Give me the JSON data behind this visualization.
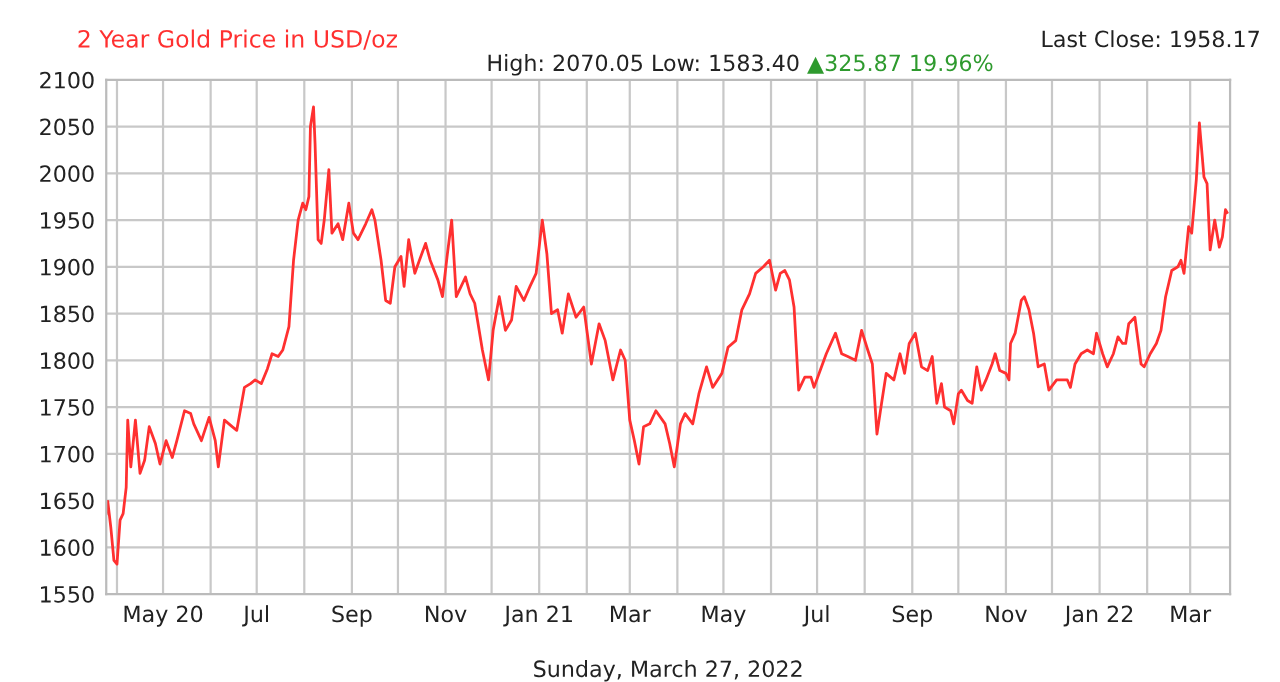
{
  "chart_data": {
    "type": "line",
    "title": "2 Year Gold Price in USD/oz",
    "subtitle": "High: 2070.05 Low: 1583.40",
    "xlabel": "Sunday, March 27, 2022",
    "annotations": [
      "▲325.87 19.96%",
      "Last Close: 1958.17"
    ],
    "xlim": [
      "2020-03-25",
      "2022-03-27"
    ],
    "ylim": [
      1550,
      2100
    ],
    "yticks": [
      1550,
      1600,
      1650,
      1700,
      1750,
      1800,
      1850,
      1900,
      1950,
      2000,
      2050,
      2100
    ],
    "xticks": [
      {
        "value": "2020-04-01",
        "label": null
      },
      {
        "value": "2020-05-01",
        "label": "May 20"
      },
      {
        "value": "2020-06-01",
        "label": null
      },
      {
        "value": "2020-07-01",
        "label": "Jul"
      },
      {
        "value": "2020-08-01",
        "label": null
      },
      {
        "value": "2020-09-01",
        "label": "Sep"
      },
      {
        "value": "2020-10-01",
        "label": null
      },
      {
        "value": "2020-11-01",
        "label": "Nov"
      },
      {
        "value": "2020-12-01",
        "label": null
      },
      {
        "value": "2021-01-01",
        "label": "Jan 21"
      },
      {
        "value": "2021-02-01",
        "label": null
      },
      {
        "value": "2021-03-01",
        "label": "Mar"
      },
      {
        "value": "2021-04-01",
        "label": null
      },
      {
        "value": "2021-05-01",
        "label": "May"
      },
      {
        "value": "2021-06-01",
        "label": null
      },
      {
        "value": "2021-07-01",
        "label": "Jul"
      },
      {
        "value": "2021-08-01",
        "label": null
      },
      {
        "value": "2021-09-01",
        "label": "Sep"
      },
      {
        "value": "2021-10-01",
        "label": null
      },
      {
        "value": "2021-11-01",
        "label": "Nov"
      },
      {
        "value": "2021-12-01",
        "label": null
      },
      {
        "value": "2022-01-01",
        "label": "Jan 22"
      },
      {
        "value": "2022-02-01",
        "label": null
      },
      {
        "value": "2022-03-01",
        "label": "Mar"
      }
    ],
    "grid": true,
    "legend": false,
    "series": [
      {
        "color": "#ff3030",
        "x": [
          "2020-03-25",
          "2020-03-26",
          "2020-03-28",
          "2020-03-30",
          "2020-04-01",
          "2020-04-03",
          "2020-04-05",
          "2020-04-07",
          "2020-04-08",
          "2020-04-10",
          "2020-04-13",
          "2020-04-16",
          "2020-04-19",
          "2020-04-22",
          "2020-04-26",
          "2020-04-29",
          "2020-05-03",
          "2020-05-07",
          "2020-05-10",
          "2020-05-15",
          "2020-05-19",
          "2020-05-21",
          "2020-05-26",
          "2020-05-31",
          "2020-06-04",
          "2020-06-06",
          "2020-06-10",
          "2020-06-15",
          "2020-06-18",
          "2020-06-23",
          "2020-06-27",
          "2020-06-30",
          "2020-07-04",
          "2020-07-08",
          "2020-07-11",
          "2020-07-15",
          "2020-07-18",
          "2020-07-22",
          "2020-07-25",
          "2020-07-28",
          "2020-07-31",
          "2020-08-02",
          "2020-08-04",
          "2020-08-05",
          "2020-08-07",
          "2020-08-08",
          "2020-08-10",
          "2020-08-12",
          "2020-08-14",
          "2020-08-17",
          "2020-08-19",
          "2020-08-23",
          "2020-08-26",
          "2020-08-30",
          "2020-09-02",
          "2020-09-05",
          "2020-09-10",
          "2020-09-14",
          "2020-09-16",
          "2020-09-20",
          "2020-09-23",
          "2020-09-26",
          "2020-09-29",
          "2020-10-03",
          "2020-10-05",
          "2020-10-08",
          "2020-10-12",
          "2020-10-15",
          "2020-10-19",
          "2020-10-22",
          "2020-10-27",
          "2020-10-30",
          "2020-11-02",
          "2020-11-05",
          "2020-11-08",
          "2020-11-10",
          "2020-11-14",
          "2020-11-17",
          "2020-11-20",
          "2020-11-25",
          "2020-11-29",
          "2020-12-02",
          "2020-12-06",
          "2020-12-10",
          "2020-12-14",
          "2020-12-17",
          "2020-12-22",
          "2020-12-26",
          "2020-12-30",
          "2021-01-03",
          "2021-01-06",
          "2021-01-09",
          "2021-01-13",
          "2021-01-16",
          "2021-01-20",
          "2021-01-25",
          "2021-01-30",
          "2021-02-04",
          "2021-02-09",
          "2021-02-13",
          "2021-02-18",
          "2021-02-23",
          "2021-02-26",
          "2021-03-01",
          "2021-03-04",
          "2021-03-07",
          "2021-03-10",
          "2021-03-14",
          "2021-03-18",
          "2021-03-24",
          "2021-03-27",
          "2021-03-30",
          "2021-04-03",
          "2021-04-06",
          "2021-04-11",
          "2021-04-15",
          "2021-04-20",
          "2021-04-24",
          "2021-04-30",
          "2021-05-04",
          "2021-05-09",
          "2021-05-13",
          "2021-05-18",
          "2021-05-22",
          "2021-05-27",
          "2021-05-31",
          "2021-06-04",
          "2021-06-07",
          "2021-06-10",
          "2021-06-13",
          "2021-06-16",
          "2021-06-19",
          "2021-06-23",
          "2021-06-27",
          "2021-06-29",
          "2021-07-03",
          "2021-07-07",
          "2021-07-13",
          "2021-07-17",
          "2021-07-21",
          "2021-07-26",
          "2021-07-30",
          "2021-08-03",
          "2021-08-06",
          "2021-08-09",
          "2021-08-12",
          "2021-08-15",
          "2021-08-20",
          "2021-08-24",
          "2021-08-27",
          "2021-08-30",
          "2021-09-03",
          "2021-09-07",
          "2021-09-11",
          "2021-09-14",
          "2021-09-17",
          "2021-09-20",
          "2021-09-22",
          "2021-09-26",
          "2021-09-28",
          "2021-10-01",
          "2021-10-03",
          "2021-10-07",
          "2021-10-10",
          "2021-10-13",
          "2021-10-16",
          "2021-10-19",
          "2021-10-23",
          "2021-10-25",
          "2021-10-28",
          "2021-11-01",
          "2021-11-03",
          "2021-11-04",
          "2021-11-07",
          "2021-11-11",
          "2021-11-13",
          "2021-11-16",
          "2021-11-19",
          "2021-11-22",
          "2021-11-26",
          "2021-11-29",
          "2021-12-04",
          "2021-12-08",
          "2021-12-11",
          "2021-12-13",
          "2021-12-16",
          "2021-12-20",
          "2021-12-24",
          "2021-12-28",
          "2021-12-30",
          "2022-01-03",
          "2022-01-06",
          "2022-01-10",
          "2022-01-13",
          "2022-01-16",
          "2022-01-18",
          "2022-01-20",
          "2022-01-24",
          "2022-01-28",
          "2022-01-30",
          "2022-02-03",
          "2022-02-07",
          "2022-02-10",
          "2022-02-13",
          "2022-02-17",
          "2022-02-21",
          "2022-02-23",
          "2022-02-25",
          "2022-02-28",
          "2022-03-02",
          "2022-03-05",
          "2022-03-07",
          "2022-03-10",
          "2022-03-12",
          "2022-03-14",
          "2022-03-17",
          "2022-03-20",
          "2022-03-22",
          "2022-03-24",
          "2022-03-25"
        ],
        "values": [
          1636,
          1649,
          1621,
          1586,
          1582,
          1629,
          1636,
          1664,
          1736,
          1686,
          1736,
          1679,
          1693,
          1729,
          1711,
          1689,
          1714,
          1696,
          1714,
          1746,
          1743,
          1732,
          1714,
          1739,
          1714,
          1686,
          1736,
          1729,
          1725,
          1771,
          1775,
          1779,
          1775,
          1791,
          1807,
          1804,
          1811,
          1836,
          1907,
          1950,
          1968,
          1961,
          1975,
          2050,
          2071,
          2032,
          1929,
          1925,
          1950,
          2004,
          1936,
          1946,
          1929,
          1968,
          1936,
          1929,
          1946,
          1961,
          1950,
          1907,
          1864,
          1861,
          1900,
          1911,
          1879,
          1929,
          1893,
          1907,
          1925,
          1907,
          1886,
          1868,
          1911,
          1950,
          1868,
          1875,
          1889,
          1871,
          1861,
          1811,
          1779,
          1832,
          1868,
          1832,
          1843,
          1879,
          1864,
          1879,
          1893,
          1950,
          1914,
          1850,
          1854,
          1829,
          1871,
          1846,
          1857,
          1796,
          1839,
          1821,
          1779,
          1811,
          1800,
          1736,
          1714,
          1689,
          1729,
          1732,
          1746,
          1732,
          1711,
          1686,
          1732,
          1743,
          1732,
          1764,
          1793,
          1771,
          1786,
          1814,
          1821,
          1854,
          1871,
          1893,
          1900,
          1907,
          1875,
          1893,
          1896,
          1886,
          1857,
          1768,
          1782,
          1782,
          1771,
          1789,
          1807,
          1829,
          1807,
          1804,
          1800,
          1832,
          1811,
          1796,
          1721,
          1754,
          1786,
          1779,
          1807,
          1786,
          1818,
          1829,
          1793,
          1789,
          1804,
          1754,
          1775,
          1750,
          1746,
          1732,
          1764,
          1768,
          1757,
          1754,
          1793,
          1768,
          1779,
          1796,
          1807,
          1789,
          1786,
          1779,
          1818,
          1829,
          1864,
          1868,
          1854,
          1829,
          1793,
          1796,
          1768,
          1779,
          1779,
          1779,
          1771,
          1796,
          1807,
          1811,
          1807,
          1829,
          1807,
          1793,
          1807,
          1825,
          1818,
          1818,
          1839,
          1846,
          1796,
          1793,
          1807,
          1818,
          1832,
          1868,
          1896,
          1900,
          1907,
          1893,
          1943,
          1936,
          1993,
          2054,
          1996,
          1989,
          1918,
          1950,
          1921,
          1932,
          1961,
          1958
        ]
      }
    ]
  }
}
